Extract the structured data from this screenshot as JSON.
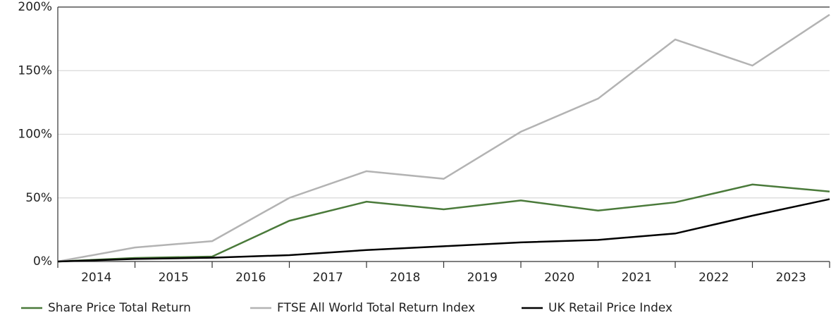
{
  "chart_data": {
    "type": "line",
    "categories": [
      null,
      "2014",
      "2015",
      "2016",
      "2017",
      "2018",
      "2019",
      "2020",
      "2021",
      "2022",
      "2023"
    ],
    "series": [
      {
        "name": "Share Price Total Return",
        "color": "#4a7a3a",
        "values": [
          0,
          2.8,
          3.9,
          32,
          47,
          41,
          48,
          40,
          46.5,
          60.5,
          55
        ]
      },
      {
        "name": "FTSE All World Total Return Index",
        "color": "#b3b3b3",
        "values": [
          0,
          11,
          16,
          50,
          71,
          65,
          102,
          128,
          174.5,
          154,
          194
        ]
      },
      {
        "name": "UK Retail Price Index",
        "color": "#000000",
        "values": [
          0,
          2,
          3,
          5,
          9,
          12,
          15,
          17,
          22,
          36,
          49
        ]
      }
    ],
    "ylim": [
      0,
      200
    ],
    "yticks": [
      {
        "value": 0,
        "label": "0%"
      },
      {
        "value": 50,
        "label": "50%"
      },
      {
        "value": 100,
        "label": "100%"
      },
      {
        "value": 150,
        "label": "150%"
      },
      {
        "value": 200,
        "label": "200%"
      }
    ],
    "grid": true,
    "legend": "bottom"
  }
}
